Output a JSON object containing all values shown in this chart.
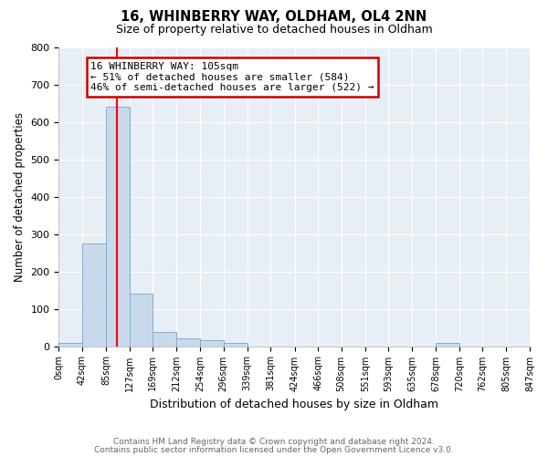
{
  "title": "16, WHINBERRY WAY, OLDHAM, OL4 2NN",
  "subtitle": "Size of property relative to detached houses in Oldham",
  "xlabel": "Distribution of detached houses by size in Oldham",
  "ylabel": "Number of detached properties",
  "bin_edges": [
    0,
    42,
    85,
    127,
    169,
    212,
    254,
    296,
    339,
    381,
    424,
    466,
    508,
    551,
    593,
    635,
    678,
    720,
    762,
    805,
    847
  ],
  "bin_counts": [
    8,
    275,
    640,
    140,
    38,
    20,
    15,
    8,
    0,
    0,
    0,
    0,
    0,
    0,
    0,
    0,
    8,
    0,
    0,
    0
  ],
  "bar_color": "#c9d9ec",
  "bar_edge_color": "#7bafd4",
  "red_line_x": 105,
  "annotation_text": "16 WHINBERRY WAY: 105sqm\n← 51% of detached houses are smaller (584)\n46% of semi-detached houses are larger (522) →",
  "annotation_box_color": "white",
  "annotation_box_edge_color": "#cc0000",
  "ylim": [
    0,
    800
  ],
  "yticks": [
    0,
    100,
    200,
    300,
    400,
    500,
    600,
    700,
    800
  ],
  "tick_labels": [
    "0sqm",
    "42sqm",
    "85sqm",
    "127sqm",
    "169sqm",
    "212sqm",
    "254sqm",
    "296sqm",
    "339sqm",
    "381sqm",
    "424sqm",
    "466sqm",
    "508sqm",
    "551sqm",
    "593sqm",
    "635sqm",
    "678sqm",
    "720sqm",
    "762sqm",
    "805sqm",
    "847sqm"
  ],
  "footer_line1": "Contains HM Land Registry data © Crown copyright and database right 2024.",
  "footer_line2": "Contains public sector information licensed under the Open Government Licence v3.0.",
  "background_color": "#ffffff",
  "plot_bg_color": "#e8eef5"
}
